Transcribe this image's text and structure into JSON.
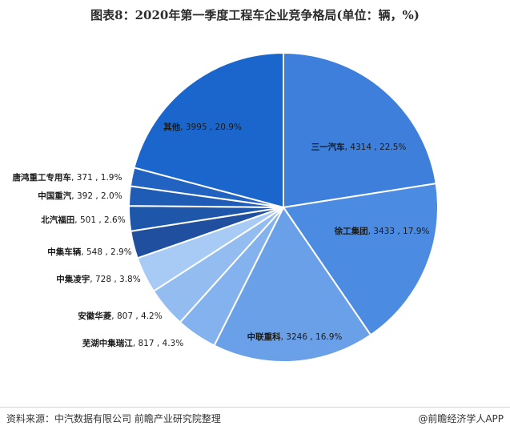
{
  "title": "图表8：2020年第一季度工程车企业竞争格局(单位：辆，%)",
  "source": "资料来源：中汽数据有限公司 前瞻产业研究院整理",
  "brand": "@前瞻经济学人APP",
  "watermark": "前瞻产业研究院",
  "colors": {
    "background": "#ffffff",
    "slice_border": "#ffffff",
    "label_text": "#1a1a1a"
  },
  "chart_data": {
    "type": "pie",
    "title": "图表8：2020年第一季度工程车企业竞争格局(单位：辆，%)",
    "unit": "辆，%",
    "slices": [
      {
        "name": "三一汽车",
        "value": 4314,
        "percent": "22.5%",
        "color": "#3d7fdb"
      },
      {
        "name": "徐工集团",
        "value": 3433,
        "percent": "17.9%",
        "color": "#4b8ce2"
      },
      {
        "name": "中联重科",
        "value": 3246,
        "percent": "16.9%",
        "color": "#6aa0e8"
      },
      {
        "name": "芜湖中集瑞江",
        "value": 817,
        "percent": "4.3%",
        "color": "#83b2ee"
      },
      {
        "name": "安徽华菱",
        "value": 807,
        "percent": "4.2%",
        "color": "#93bdf1"
      },
      {
        "name": "中集凌宇",
        "value": 728,
        "percent": "3.8%",
        "color": "#a7cbf4"
      },
      {
        "name": "中集车辆",
        "value": 548,
        "percent": "2.9%",
        "color": "#1f4f9e"
      },
      {
        "name": "北汽福田",
        "value": 501,
        "percent": "2.6%",
        "color": "#1e56aa"
      },
      {
        "name": "中国重汽",
        "value": 392,
        "percent": "2.0%",
        "color": "#1f5cb6"
      },
      {
        "name": "唐鸿重工专用车",
        "value": 371,
        "percent": "1.9%",
        "color": "#2262c0"
      },
      {
        "name": "其他",
        "value": 3995,
        "percent": "20.9%",
        "color": "#1a66cc"
      }
    ]
  }
}
